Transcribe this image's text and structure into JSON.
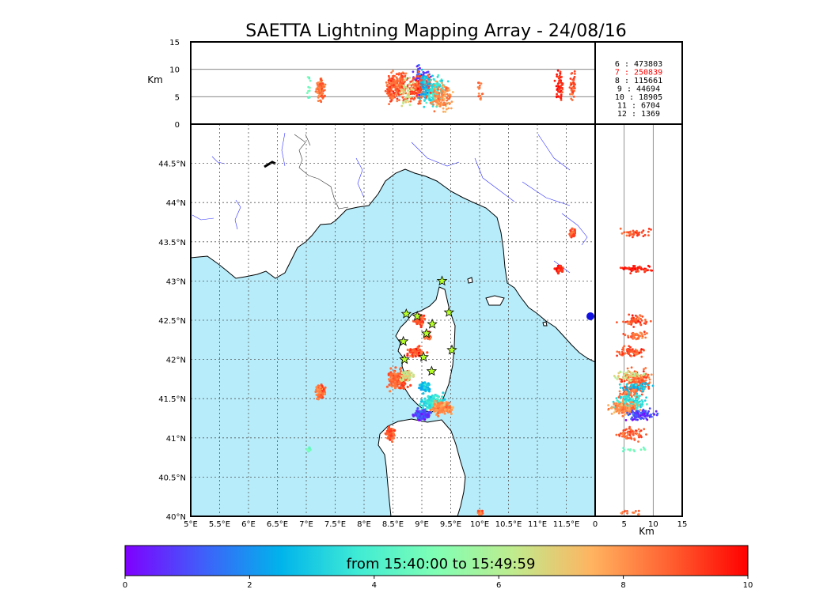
{
  "chart_data": {
    "type": "scatter",
    "title": "SAETTA Lightning Mapping Array - 24/08/16",
    "map": {
      "lon_range": [
        5.0,
        12.0
      ],
      "lat_range": [
        40.0,
        45.0
      ],
      "lon_ticks": [
        "5°E",
        "5.5°E",
        "6°E",
        "6.5°E",
        "7°E",
        "7.5°E",
        "8°E",
        "8.5°E",
        "9°E",
        "9.5°E",
        "10°E",
        "10.5°E",
        "11°E",
        "11.5°E"
      ],
      "lat_ticks": [
        "40°N",
        "40.5°N",
        "41°N",
        "41.5°N",
        "42°N",
        "42.5°N",
        "43°N",
        "43.5°N",
        "44°N",
        "44.5°N"
      ],
      "grid": true,
      "sea_color": "#b7ecfa",
      "stations": [
        [
          8.73,
          42.58
        ],
        [
          8.92,
          42.55
        ],
        [
          9.18,
          42.45
        ],
        [
          9.47,
          42.6
        ],
        [
          9.35,
          43.0
        ],
        [
          9.08,
          42.33
        ],
        [
          8.68,
          42.23
        ],
        [
          9.52,
          42.12
        ],
        [
          8.7,
          42.0
        ],
        [
          9.03,
          42.03
        ],
        [
          9.17,
          41.85
        ]
      ]
    },
    "altitude_axis": {
      "label": "Km",
      "range": [
        0,
        15
      ],
      "ticks": [
        "0",
        "5",
        "10",
        "15"
      ]
    },
    "counts": [
      {
        "station": "6",
        "value": "473803",
        "color": "#000000"
      },
      {
        "station": "7",
        "value": "250839",
        "color": "#ff0000"
      },
      {
        "station": "8",
        "value": "115661",
        "color": "#000000"
      },
      {
        "station": "9",
        "value": "44694",
        "color": "#000000"
      },
      {
        "station": "10",
        "value": "18905",
        "color": "#000000"
      },
      {
        "station": "11",
        "value": "6704",
        "color": "#000000"
      },
      {
        "station": "12",
        "value": "1369",
        "color": "#000000"
      }
    ],
    "colorbar": {
      "label": "from 15:40:00 to 15:49:59",
      "range": [
        0,
        10
      ],
      "ticks": [
        "0",
        "2",
        "4",
        "6",
        "8",
        "10"
      ],
      "colors": [
        "#7f00ff",
        "#3f5ffa",
        "#00b4eb",
        "#40ecd4",
        "#80ffb4",
        "#c0eb8d",
        "#ffb360",
        "#ff6030",
        "#ff0000"
      ]
    },
    "clusters": [
      {
        "lon": 7.25,
        "lat": 41.6,
        "rlon": 0.12,
        "rlat": 0.14,
        "alt": 6,
        "t": 8.5,
        "n": 90
      },
      {
        "lon": 8.6,
        "lat": 41.75,
        "rlon": 0.28,
        "rlat": 0.18,
        "alt": 7,
        "t": 8.7,
        "n": 160
      },
      {
        "lon": 9.2,
        "lat": 41.45,
        "rlon": 0.3,
        "rlat": 0.15,
        "alt": 6,
        "t": 3.5,
        "n": 160
      },
      {
        "lon": 9.35,
        "lat": 41.38,
        "rlon": 0.25,
        "rlat": 0.12,
        "alt": 5,
        "t": 8.0,
        "n": 130
      },
      {
        "lon": 9.0,
        "lat": 41.3,
        "rlon": 0.2,
        "rlat": 0.1,
        "alt": 8,
        "t": 0.8,
        "n": 110
      },
      {
        "lon": 8.45,
        "lat": 41.05,
        "rlon": 0.12,
        "rlat": 0.12,
        "alt": 6,
        "t": 8.8,
        "n": 60
      },
      {
        "lon": 8.9,
        "lat": 42.1,
        "rlon": 0.2,
        "rlat": 0.1,
        "alt": 6,
        "t": 8.9,
        "n": 70
      },
      {
        "lon": 8.95,
        "lat": 42.5,
        "rlon": 0.12,
        "rlat": 0.1,
        "alt": 7,
        "t": 8.9,
        "n": 60
      },
      {
        "lon": 9.1,
        "lat": 42.3,
        "rlon": 0.1,
        "rlat": 0.08,
        "alt": 7,
        "t": 8.6,
        "n": 40
      },
      {
        "lon": 11.38,
        "lat": 43.15,
        "rlon": 0.09,
        "rlat": 0.07,
        "alt": 7,
        "t": 9.5,
        "n": 60
      },
      {
        "lon": 11.62,
        "lat": 43.62,
        "rlon": 0.07,
        "rlat": 0.08,
        "alt": 7,
        "t": 9.0,
        "n": 40
      },
      {
        "lon": 9.05,
        "lat": 41.65,
        "rlon": 0.12,
        "rlat": 0.08,
        "alt": 7,
        "t": 2.8,
        "n": 50
      },
      {
        "lon": 8.75,
        "lat": 41.8,
        "rlon": 0.15,
        "rlat": 0.1,
        "alt": 6,
        "t": 6.5,
        "n": 40
      },
      {
        "lon": 7.05,
        "lat": 40.85,
        "rlon": 0.05,
        "rlat": 0.05,
        "alt": 7,
        "t": 5.0,
        "n": 12
      },
      {
        "lon": 10.0,
        "lat": 40.05,
        "rlon": 0.08,
        "rlat": 0.05,
        "alt": 6,
        "t": 8.5,
        "n": 15
      }
    ]
  }
}
